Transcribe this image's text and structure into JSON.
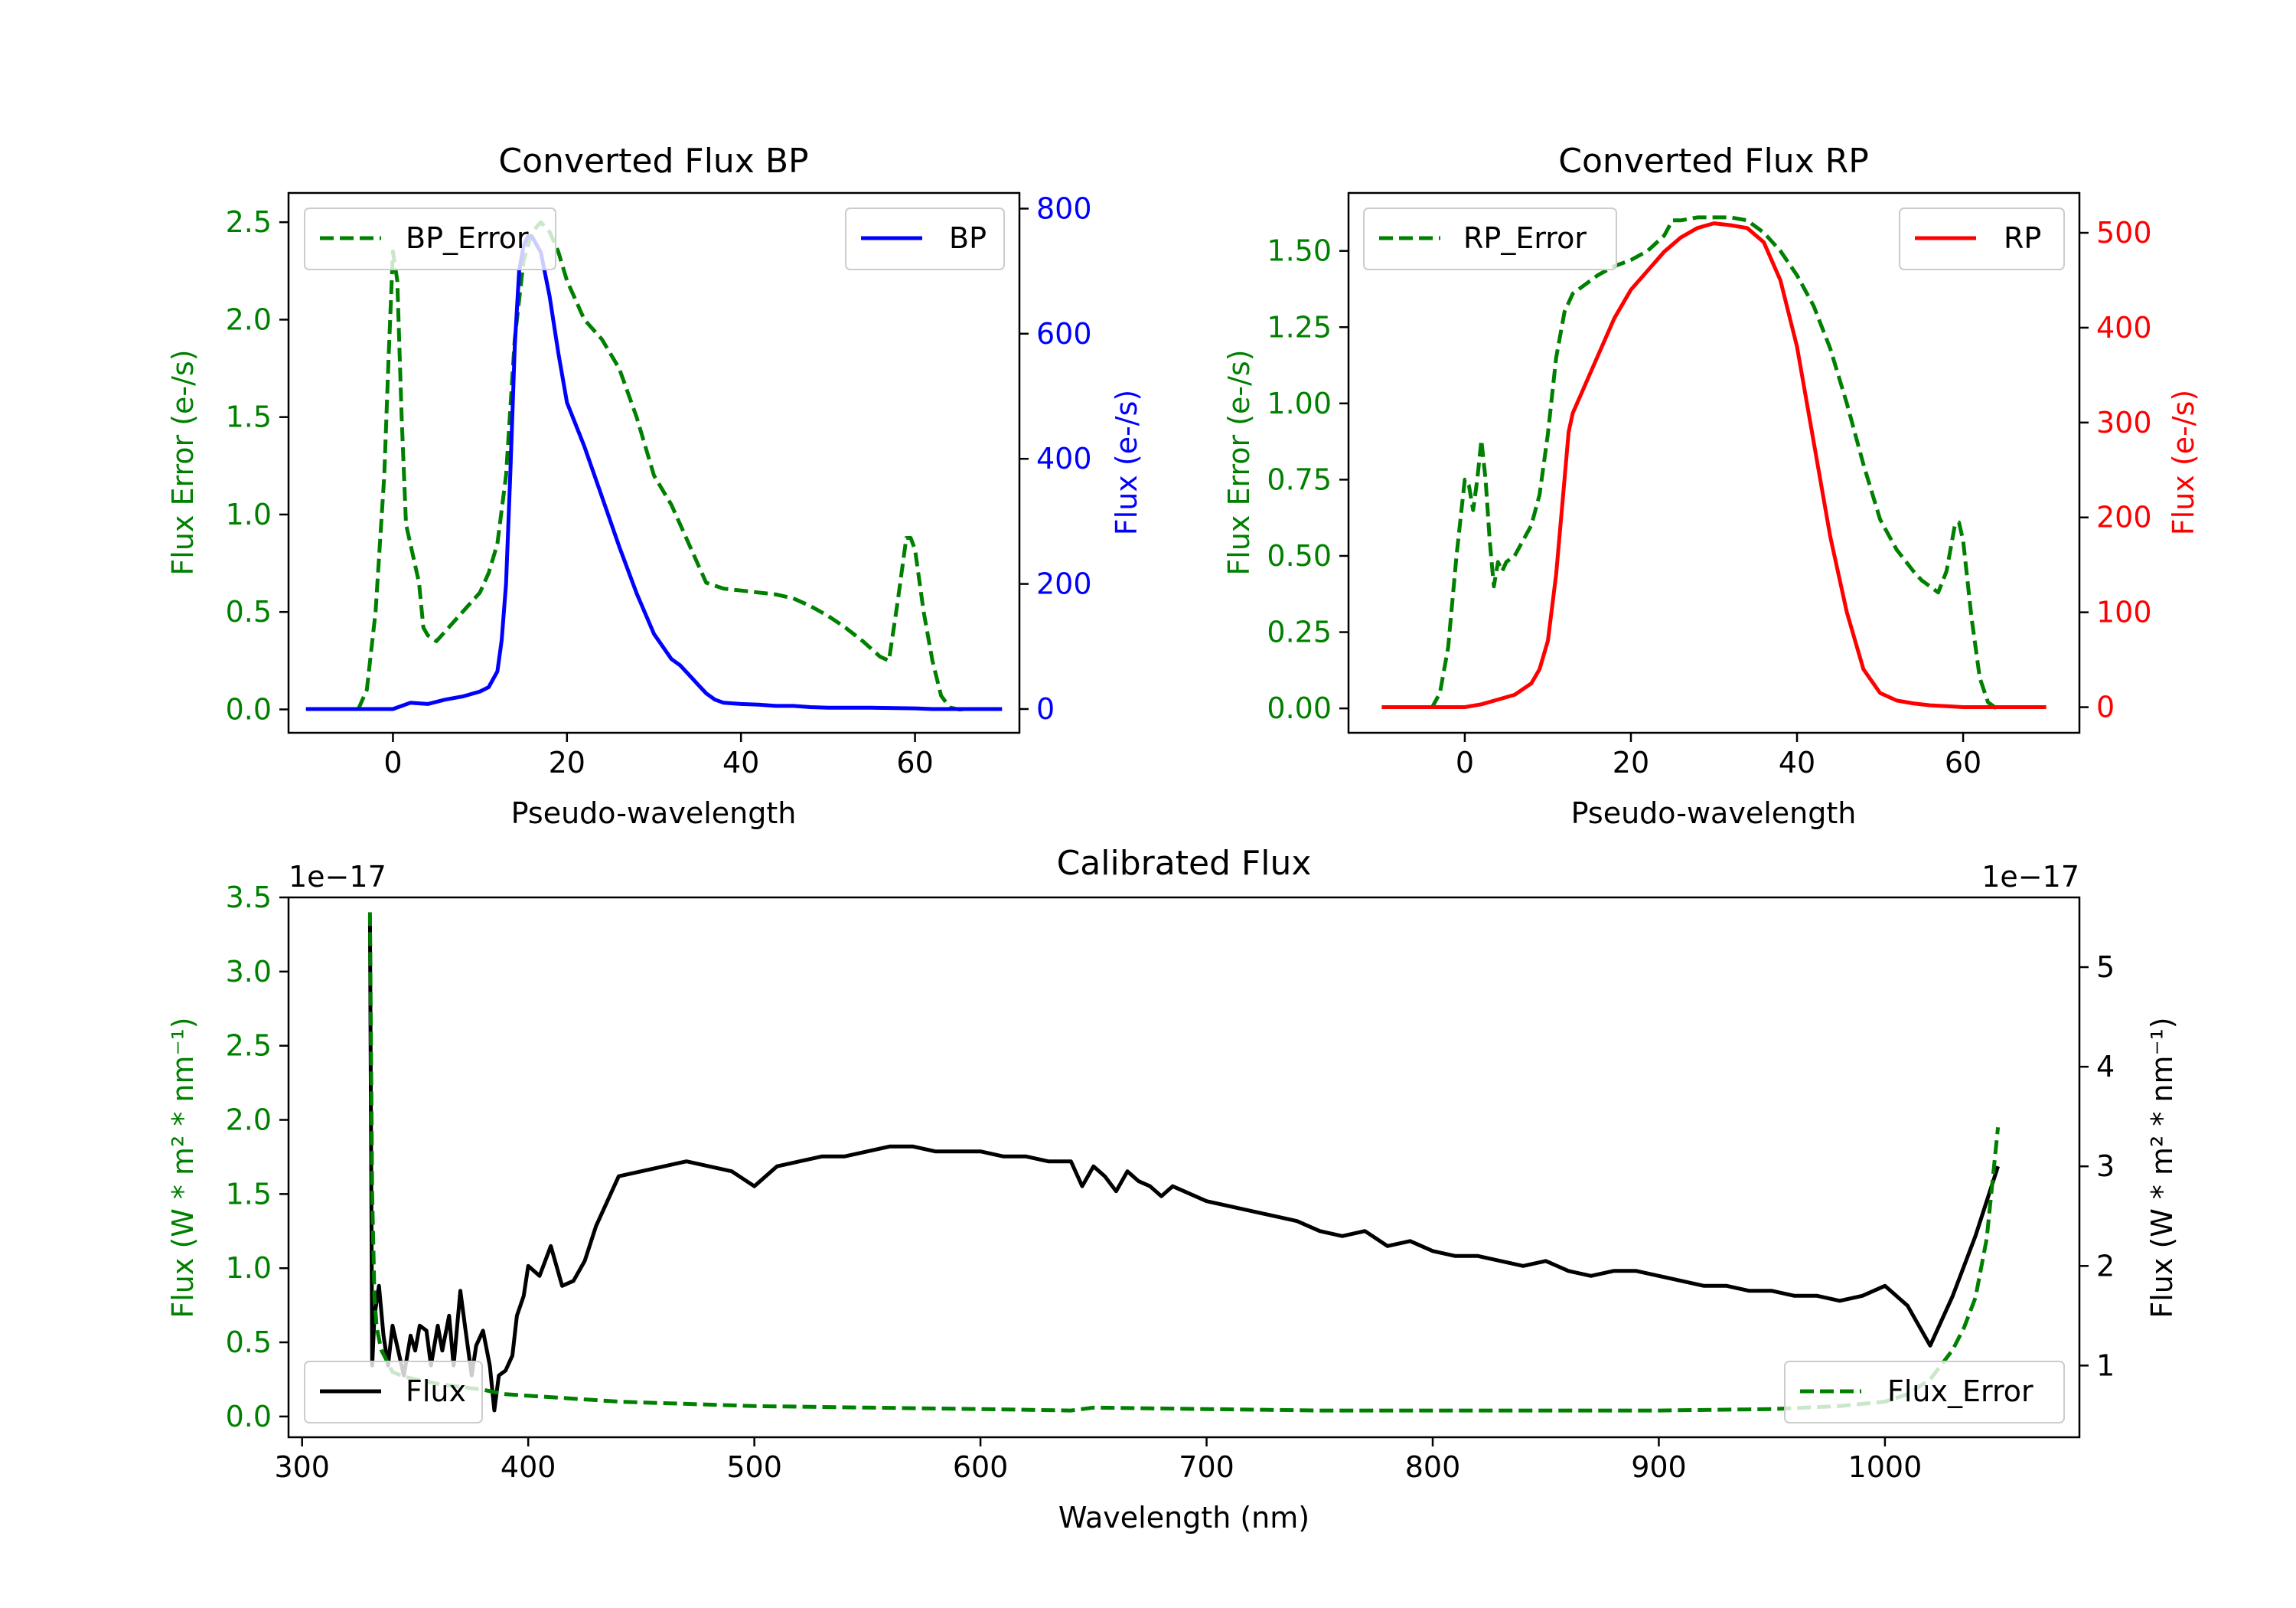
{
  "colors": {
    "green": "#008000",
    "blue": "#0000ff",
    "red": "#ff0000",
    "black": "#000000"
  },
  "chart_data": [
    {
      "type": "line",
      "title": "Converted Flux BP",
      "xlabel": "Pseudo-wavelength",
      "ylabel_left": "Flux Error (e-/s)",
      "ylabel_right": "Flux (e-/s)",
      "xlim": [
        -12,
        72
      ],
      "ylim_left": [
        -0.12,
        2.65
      ],
      "ylim_right": [
        -38,
        825
      ],
      "xticks": [
        0,
        20,
        40,
        60
      ],
      "yticks_left": [
        "0.0",
        "0.5",
        "1.0",
        "1.5",
        "2.0",
        "2.5"
      ],
      "yticks_right": [
        "0",
        "200",
        "400",
        "600",
        "800"
      ],
      "series": [
        {
          "name": "BP_Error",
          "axis": "left",
          "style": "dashed",
          "color": "#008000",
          "x": [
            -4,
            -3,
            -2,
            -1,
            -0.5,
            0,
            0.5,
            1,
            1.5,
            2,
            3,
            3.5,
            4,
            5,
            6,
            7,
            8,
            9,
            10,
            11,
            12,
            13,
            14,
            15,
            16,
            17,
            18,
            19,
            20,
            21,
            22,
            24,
            26,
            28,
            30,
            32,
            34,
            36,
            38,
            40,
            42,
            44,
            46,
            48,
            50,
            52,
            54,
            56,
            57,
            58,
            59,
            59.5,
            60,
            61,
            62,
            63,
            64,
            65,
            66
          ],
          "values": [
            0.0,
            0.1,
            0.5,
            1.2,
            1.8,
            2.35,
            2.2,
            1.5,
            0.95,
            0.85,
            0.65,
            0.42,
            0.38,
            0.35,
            0.4,
            0.45,
            0.5,
            0.55,
            0.6,
            0.7,
            0.85,
            1.2,
            1.9,
            2.3,
            2.45,
            2.5,
            2.45,
            2.35,
            2.2,
            2.1,
            2.0,
            1.9,
            1.75,
            1.5,
            1.2,
            1.05,
            0.85,
            0.65,
            0.62,
            0.61,
            0.6,
            0.59,
            0.57,
            0.53,
            0.48,
            0.42,
            0.35,
            0.27,
            0.25,
            0.55,
            0.88,
            0.88,
            0.82,
            0.5,
            0.25,
            0.07,
            0.01,
            0.0,
            0.0
          ]
        },
        {
          "name": "BP",
          "axis": "right",
          "style": "solid",
          "color": "#0000ff",
          "x": [
            -10,
            -6,
            -2,
            0,
            2,
            4,
            6,
            8,
            10,
            11,
            12,
            12.5,
            13,
            13.5,
            14,
            14.5,
            15,
            15.5,
            16,
            17,
            18,
            19,
            20,
            22,
            24,
            26,
            28,
            30,
            32,
            33,
            34,
            35,
            36,
            37,
            38,
            40,
            42,
            44,
            46,
            48,
            50,
            55,
            60,
            62,
            65,
            70
          ],
          "values": [
            0,
            0,
            0,
            0,
            10,
            8,
            15,
            20,
            28,
            35,
            60,
            110,
            200,
            380,
            580,
            700,
            740,
            755,
            755,
            730,
            660,
            570,
            490,
            420,
            340,
            260,
            185,
            120,
            80,
            70,
            55,
            40,
            25,
            15,
            10,
            8,
            7,
            5,
            5,
            3,
            2,
            2,
            1,
            0,
            0,
            0
          ]
        }
      ]
    },
    {
      "type": "line",
      "title": "Converted Flux RP",
      "xlabel": "Pseudo-wavelength",
      "ylabel_left": "Flux Error (e-/s)",
      "ylabel_right": "Flux (e-/s)",
      "xlim": [
        -14,
        74
      ],
      "ylim_left": [
        -0.08,
        1.69
      ],
      "ylim_right": [
        -27,
        542
      ],
      "xticks": [
        0,
        20,
        40,
        60
      ],
      "yticks_left": [
        "0.00",
        "0.25",
        "0.50",
        "0.75",
        "1.00",
        "1.25",
        "1.50"
      ],
      "yticks_right": [
        "0",
        "100",
        "200",
        "300",
        "400",
        "500"
      ],
      "series": [
        {
          "name": "RP_Error",
          "axis": "left",
          "style": "dashed",
          "color": "#008000",
          "x": [
            -4,
            -3,
            -2,
            -1,
            0,
            0.5,
            1,
            1.5,
            2,
            2.5,
            3,
            3.5,
            4,
            4.5,
            5,
            6,
            7,
            8,
            9,
            10,
            11,
            12,
            13,
            14,
            16,
            18,
            20,
            22,
            24,
            25,
            26,
            28,
            30,
            32,
            34,
            36,
            38,
            40,
            42,
            44,
            46,
            48,
            50,
            52,
            54,
            55,
            56,
            57,
            58,
            59,
            59.5,
            60,
            61,
            62,
            63,
            64
          ],
          "values": [
            0.0,
            0.05,
            0.2,
            0.5,
            0.75,
            0.73,
            0.65,
            0.75,
            0.88,
            0.75,
            0.55,
            0.4,
            0.48,
            0.45,
            0.48,
            0.5,
            0.55,
            0.6,
            0.7,
            0.9,
            1.15,
            1.3,
            1.36,
            1.38,
            1.42,
            1.45,
            1.47,
            1.5,
            1.55,
            1.6,
            1.6,
            1.61,
            1.61,
            1.61,
            1.6,
            1.56,
            1.5,
            1.42,
            1.32,
            1.18,
            1.0,
            0.8,
            0.62,
            0.52,
            0.45,
            0.42,
            0.4,
            0.38,
            0.45,
            0.6,
            0.61,
            0.55,
            0.3,
            0.1,
            0.02,
            0.0
          ]
        },
        {
          "name": "RP",
          "axis": "right",
          "style": "solid",
          "color": "#ff0000",
          "x": [
            -10,
            -6,
            -2,
            0,
            2,
            4,
            6,
            8,
            9,
            10,
            11,
            12,
            12.5,
            13,
            14,
            16,
            18,
            20,
            22,
            24,
            26,
            28,
            30,
            32,
            34,
            36,
            38,
            40,
            42,
            44,
            46,
            48,
            50,
            52,
            54,
            56,
            58,
            60,
            65,
            70
          ],
          "values": [
            0,
            0,
            0,
            0,
            3,
            8,
            13,
            25,
            40,
            70,
            140,
            240,
            290,
            310,
            330,
            370,
            410,
            440,
            460,
            480,
            495,
            505,
            510,
            508,
            505,
            490,
            450,
            380,
            280,
            180,
            100,
            40,
            15,
            7,
            4,
            2,
            1,
            0,
            0,
            0
          ]
        }
      ]
    },
    {
      "type": "line",
      "title": "Calibrated Flux",
      "xlabel": "Wavelength (nm)",
      "ylabel_left": "Flux (W * m² * nm⁻¹)",
      "ylabel_right": "Flux (W * m² * nm⁻¹)",
      "offset_left": "1e−17",
      "offset_right": "1e−17",
      "xlim": [
        294,
        1086
      ],
      "ylim_left": [
        -0.14,
        3.5
      ],
      "ylim_right": [
        0.28,
        5.7
      ],
      "xticks": [
        300,
        400,
        500,
        600,
        700,
        800,
        900,
        1000
      ],
      "yticks_left": [
        "0.0",
        "0.5",
        "1.0",
        "1.5",
        "2.0",
        "2.5",
        "3.0",
        "3.5"
      ],
      "yticks_right": [
        "1",
        "2",
        "3",
        "4",
        "5"
      ],
      "series": [
        {
          "name": "Flux",
          "axis": "right",
          "style": "solid",
          "color": "#000000",
          "x": [
            330,
            331,
            332,
            334,
            336,
            338,
            340,
            342,
            345,
            348,
            350,
            352,
            355,
            357,
            360,
            362,
            365,
            367,
            370,
            372,
            375,
            377,
            380,
            383,
            385,
            387,
            390,
            393,
            395,
            398,
            400,
            405,
            410,
            415,
            420,
            425,
            430,
            440,
            450,
            460,
            470,
            480,
            490,
            500,
            510,
            520,
            530,
            540,
            550,
            560,
            570,
            580,
            590,
            600,
            610,
            620,
            630,
            640,
            645,
            650,
            655,
            660,
            665,
            670,
            675,
            680,
            685,
            690,
            700,
            710,
            720,
            730,
            740,
            750,
            760,
            770,
            780,
            790,
            800,
            810,
            820,
            830,
            840,
            850,
            860,
            870,
            880,
            890,
            900,
            910,
            920,
            930,
            940,
            950,
            960,
            970,
            980,
            990,
            1000,
            1010,
            1020,
            1030,
            1040,
            1050
          ],
          "values": [
            5.5,
            1.0,
            1.5,
            1.8,
            1.3,
            1.0,
            1.4,
            1.2,
            0.9,
            1.3,
            1.15,
            1.4,
            1.35,
            1.0,
            1.4,
            1.15,
            1.5,
            1.0,
            1.75,
            1.4,
            0.9,
            1.2,
            1.35,
            1.0,
            0.55,
            0.9,
            0.95,
            1.1,
            1.5,
            1.7,
            2.0,
            1.9,
            2.2,
            1.8,
            1.85,
            2.05,
            2.4,
            2.9,
            2.95,
            3.0,
            3.05,
            3.0,
            2.95,
            2.8,
            3.0,
            3.05,
            3.1,
            3.1,
            3.15,
            3.2,
            3.2,
            3.15,
            3.15,
            3.15,
            3.1,
            3.1,
            3.05,
            3.05,
            2.8,
            3.0,
            2.9,
            2.75,
            2.95,
            2.85,
            2.8,
            2.7,
            2.8,
            2.75,
            2.65,
            2.6,
            2.55,
            2.5,
            2.45,
            2.35,
            2.3,
            2.35,
            2.2,
            2.25,
            2.15,
            2.1,
            2.1,
            2.05,
            2.0,
            2.05,
            1.95,
            1.9,
            1.95,
            1.95,
            1.9,
            1.85,
            1.8,
            1.8,
            1.75,
            1.75,
            1.7,
            1.7,
            1.65,
            1.7,
            1.8,
            1.6,
            1.2,
            1.7,
            2.3,
            3.0
          ]
        },
        {
          "name": "Flux_Error",
          "axis": "left",
          "style": "dashed",
          "color": "#008000",
          "x": [
            330,
            331,
            332,
            333,
            335,
            340,
            345,
            350,
            360,
            370,
            380,
            390,
            400,
            420,
            440,
            460,
            480,
            500,
            550,
            600,
            640,
            650,
            700,
            750,
            800,
            850,
            900,
            950,
            980,
            1000,
            1010,
            1020,
            1030,
            1035,
            1040,
            1045,
            1050
          ],
          "values": [
            3.4,
            1.5,
            0.8,
            0.6,
            0.45,
            0.3,
            0.27,
            0.25,
            0.22,
            0.2,
            0.18,
            0.15,
            0.14,
            0.12,
            0.1,
            0.09,
            0.08,
            0.07,
            0.06,
            0.05,
            0.04,
            0.06,
            0.05,
            0.04,
            0.04,
            0.04,
            0.04,
            0.05,
            0.07,
            0.1,
            0.15,
            0.25,
            0.45,
            0.6,
            0.8,
            1.2,
            1.95
          ]
        }
      ]
    }
  ]
}
